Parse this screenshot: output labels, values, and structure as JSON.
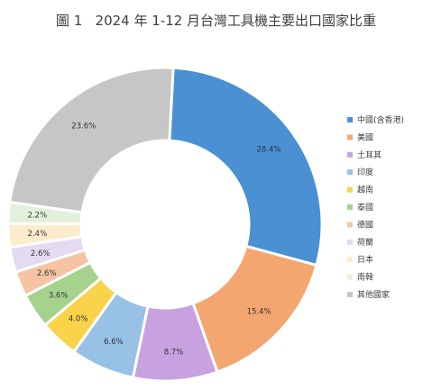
{
  "chart_data": {
    "type": "pie",
    "title": "圖 1   2024 年 1-12 月台灣工具機主要出口國家比重",
    "legend_position": "right",
    "slices": [
      {
        "name": "中國(含香港)",
        "value": 28.4,
        "label": "28.4%",
        "color": "#4a90d3"
      },
      {
        "name": "美國",
        "value": 15.4,
        "label": "15.4%",
        "color": "#f4a671"
      },
      {
        "name": "土耳其",
        "value": 8.7,
        "label": "8.7%",
        "color": "#c8a2e0"
      },
      {
        "name": "印度",
        "value": 6.6,
        "label": "6.6%",
        "color": "#98c1e6"
      },
      {
        "name": "越南",
        "value": 4.0,
        "label": "4.0%",
        "color": "#f9d44b"
      },
      {
        "name": "泰國",
        "value": 3.6,
        "label": "3.6%",
        "color": "#a5d28d"
      },
      {
        "name": "德國",
        "value": 2.6,
        "label": "2.6%",
        "color": "#f6c4a3"
      },
      {
        "name": "荷蘭",
        "value": 2.6,
        "label": "2.6%",
        "color": "#e4daf1"
      },
      {
        "name": "日本",
        "value": 2.4,
        "label": "2.4%",
        "color": "#fdeccb"
      },
      {
        "name": "南韓",
        "value": 2.2,
        "label": "2.2%",
        "color": "#e3f1dc"
      },
      {
        "name": "其他國家",
        "value": 23.6,
        "label": "23.6%",
        "color": "#c6c6c6"
      }
    ]
  }
}
